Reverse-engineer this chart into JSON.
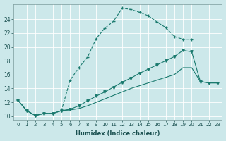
{
  "xlabel": "Humidex (Indice chaleur)",
  "background_color": "#cce8ea",
  "grid_color": "#ffffff",
  "line_color": "#1a7a6e",
  "xlim": [
    -0.5,
    23.5
  ],
  "ylim": [
    9.5,
    26.2
  ],
  "xticks": [
    0,
    1,
    2,
    3,
    4,
    5,
    6,
    7,
    8,
    9,
    10,
    11,
    12,
    13,
    14,
    15,
    16,
    17,
    18,
    19,
    20,
    21,
    22,
    23
  ],
  "yticks": [
    10,
    12,
    14,
    16,
    18,
    20,
    22,
    24
  ],
  "line1_x": [
    0,
    1,
    2,
    3,
    4,
    5,
    6,
    7,
    8,
    9,
    10,
    11,
    12,
    13,
    14,
    15,
    16,
    17,
    18,
    19,
    20
  ],
  "line1_y": [
    12.3,
    10.8,
    10.1,
    10.4,
    10.4,
    10.8,
    15.2,
    17.0,
    18.5,
    21.2,
    22.7,
    23.7,
    25.6,
    25.4,
    25.0,
    24.5,
    23.6,
    22.8,
    21.5,
    21.1,
    21.1
  ],
  "line2_x": [
    0,
    1,
    2,
    3,
    4,
    5,
    6,
    7,
    8,
    9,
    10,
    11,
    12,
    13,
    14,
    15,
    16,
    17,
    18,
    19,
    20,
    21,
    22,
    23
  ],
  "line2_y": [
    12.3,
    10.8,
    10.1,
    10.4,
    10.4,
    10.8,
    11.0,
    11.5,
    12.2,
    12.9,
    13.5,
    14.2,
    14.9,
    15.5,
    16.2,
    16.8,
    17.4,
    18.0,
    18.6,
    19.5,
    19.3,
    15.0,
    14.8,
    14.8
  ],
  "line3_x": [
    0,
    1,
    2,
    3,
    4,
    5,
    6,
    7,
    8,
    9,
    10,
    11,
    12,
    13,
    14,
    15,
    16,
    17,
    18,
    19,
    20,
    21,
    22,
    23
  ],
  "line3_y": [
    12.3,
    10.8,
    10.1,
    10.4,
    10.4,
    10.8,
    10.9,
    11.1,
    11.5,
    12.0,
    12.5,
    13.0,
    13.5,
    14.0,
    14.4,
    14.8,
    15.2,
    15.6,
    16.0,
    17.0,
    17.0,
    15.0,
    14.8,
    14.8
  ]
}
